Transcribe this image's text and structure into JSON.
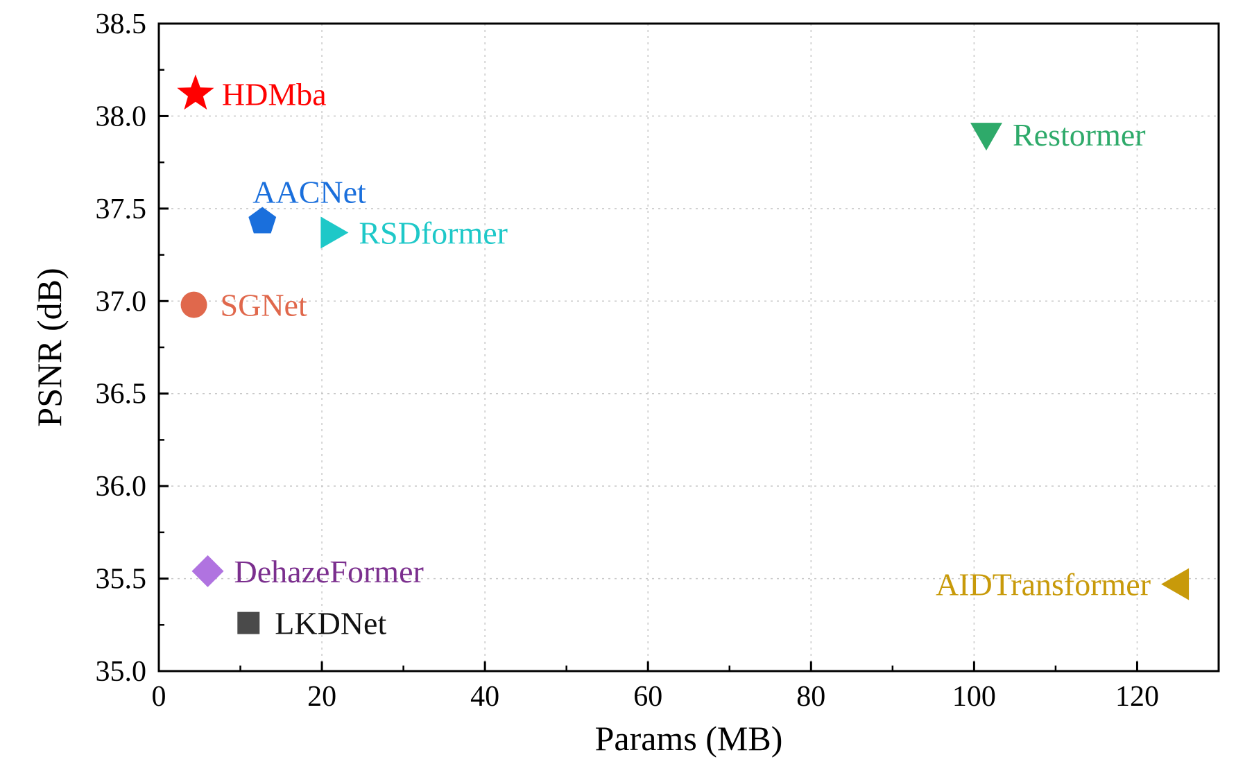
{
  "chart_data": {
    "type": "scatter",
    "title": "",
    "xlabel": "Params (MB)",
    "ylabel": "PSNR (dB)",
    "xlim": [
      0,
      130
    ],
    "ylim": [
      35.0,
      38.5
    ],
    "x_ticks": [
      0,
      20,
      40,
      60,
      80,
      100,
      120
    ],
    "x_tick_labels": [
      "0",
      "20",
      "40",
      "60",
      "80",
      "100",
      "120"
    ],
    "y_ticks": [
      35.0,
      35.5,
      36.0,
      36.5,
      37.0,
      37.5,
      38.0,
      38.5
    ],
    "y_tick_labels": [
      "35.0",
      "35.5",
      "36.0",
      "36.5",
      "37.0",
      "37.5",
      "38.0",
      "38.5"
    ],
    "grid": true,
    "legend": "none",
    "points": [
      {
        "label": "HDMba",
        "x": 4.5,
        "y": 38.12,
        "marker": "star",
        "color": "#ff0000",
        "label_side": "right"
      },
      {
        "label": "Restormer",
        "x": 101.5,
        "y": 37.9,
        "marker": "triangle-down",
        "color": "#2eaa6a",
        "label_side": "right"
      },
      {
        "label": "AACNet",
        "x": 12.7,
        "y": 37.43,
        "marker": "pentagon",
        "color": "#1a6fdc",
        "label_side": "above-right"
      },
      {
        "label": "RSDformer",
        "x": 21.3,
        "y": 37.37,
        "marker": "triangle-right",
        "color": "#1ec8c8",
        "label_side": "right"
      },
      {
        "label": "SGNet",
        "x": 4.3,
        "y": 36.98,
        "marker": "circle",
        "color": "#e0684c",
        "label_side": "right"
      },
      {
        "label": "DehazeFormer",
        "x": 6.0,
        "y": 35.54,
        "marker": "diamond",
        "color": "#b073e0",
        "label_color": "#7b2f8e",
        "label_side": "right"
      },
      {
        "label": "LKDNet",
        "x": 11.0,
        "y": 35.26,
        "marker": "square",
        "color": "#4a4a4a",
        "label_color": "#111111",
        "label_side": "right"
      },
      {
        "label": "AIDTransformer",
        "x": 124.9,
        "y": 35.47,
        "marker": "triangle-left",
        "color": "#c89a0a",
        "label_side": "left"
      }
    ]
  }
}
